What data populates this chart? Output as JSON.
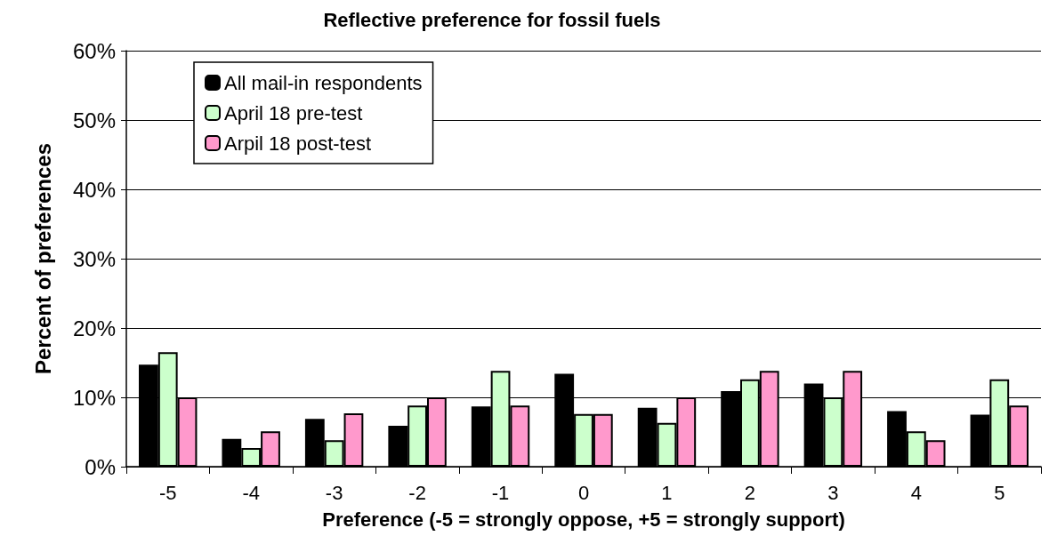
{
  "chart_data": {
    "type": "bar",
    "title": "Reflective preference for fossil fuels",
    "xlabel": "Preference (-5 = strongly oppose, +5 = strongly support)",
    "ylabel": "Percent of preferences",
    "categories": [
      "-5",
      "-4",
      "-3",
      "-2",
      "-1",
      "0",
      "1",
      "2",
      "3",
      "4",
      "5"
    ],
    "series": [
      {
        "name": "All mail-in respondents",
        "color": "#000000",
        "values": [
          14.7,
          4.0,
          6.9,
          5.9,
          8.7,
          13.4,
          8.5,
          10.9,
          12.0,
          8.0,
          7.5
        ]
      },
      {
        "name": "April 18 pre-test",
        "color": "#ccffcc",
        "values": [
          16.5,
          2.7,
          3.8,
          8.8,
          13.8,
          7.6,
          6.3,
          12.6,
          10.0,
          5.1,
          12.6
        ]
      },
      {
        "name": "Arpil 18 post-test",
        "color": "#ff99cc",
        "values": [
          10.0,
          5.1,
          7.7,
          10.0,
          8.8,
          7.6,
          10.0,
          13.8,
          13.8,
          3.8,
          8.8
        ]
      }
    ],
    "ylim": [
      0,
      60
    ],
    "yticks": [
      {
        "value": 0,
        "label": "0%"
      },
      {
        "value": 10,
        "label": "10%"
      },
      {
        "value": 20,
        "label": "20%"
      },
      {
        "value": 30,
        "label": "30%"
      },
      {
        "value": 40,
        "label": "40%"
      },
      {
        "value": 50,
        "label": "50%"
      },
      {
        "value": 60,
        "label": "60%"
      }
    ],
    "grid": "y",
    "legend": "top left"
  }
}
